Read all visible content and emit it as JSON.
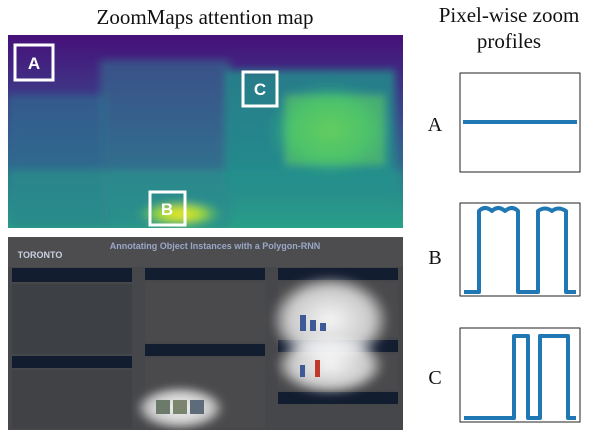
{
  "map_title": "ZoomMaps attention map",
  "profiles_title": [
    "Pixel-wise zoom",
    "profiles"
  ],
  "regions": [
    "A",
    "B",
    "C"
  ],
  "poster": {
    "title": "Annotating Object Instances with a Polygon-RNN",
    "university": "TORONTO"
  }
}
